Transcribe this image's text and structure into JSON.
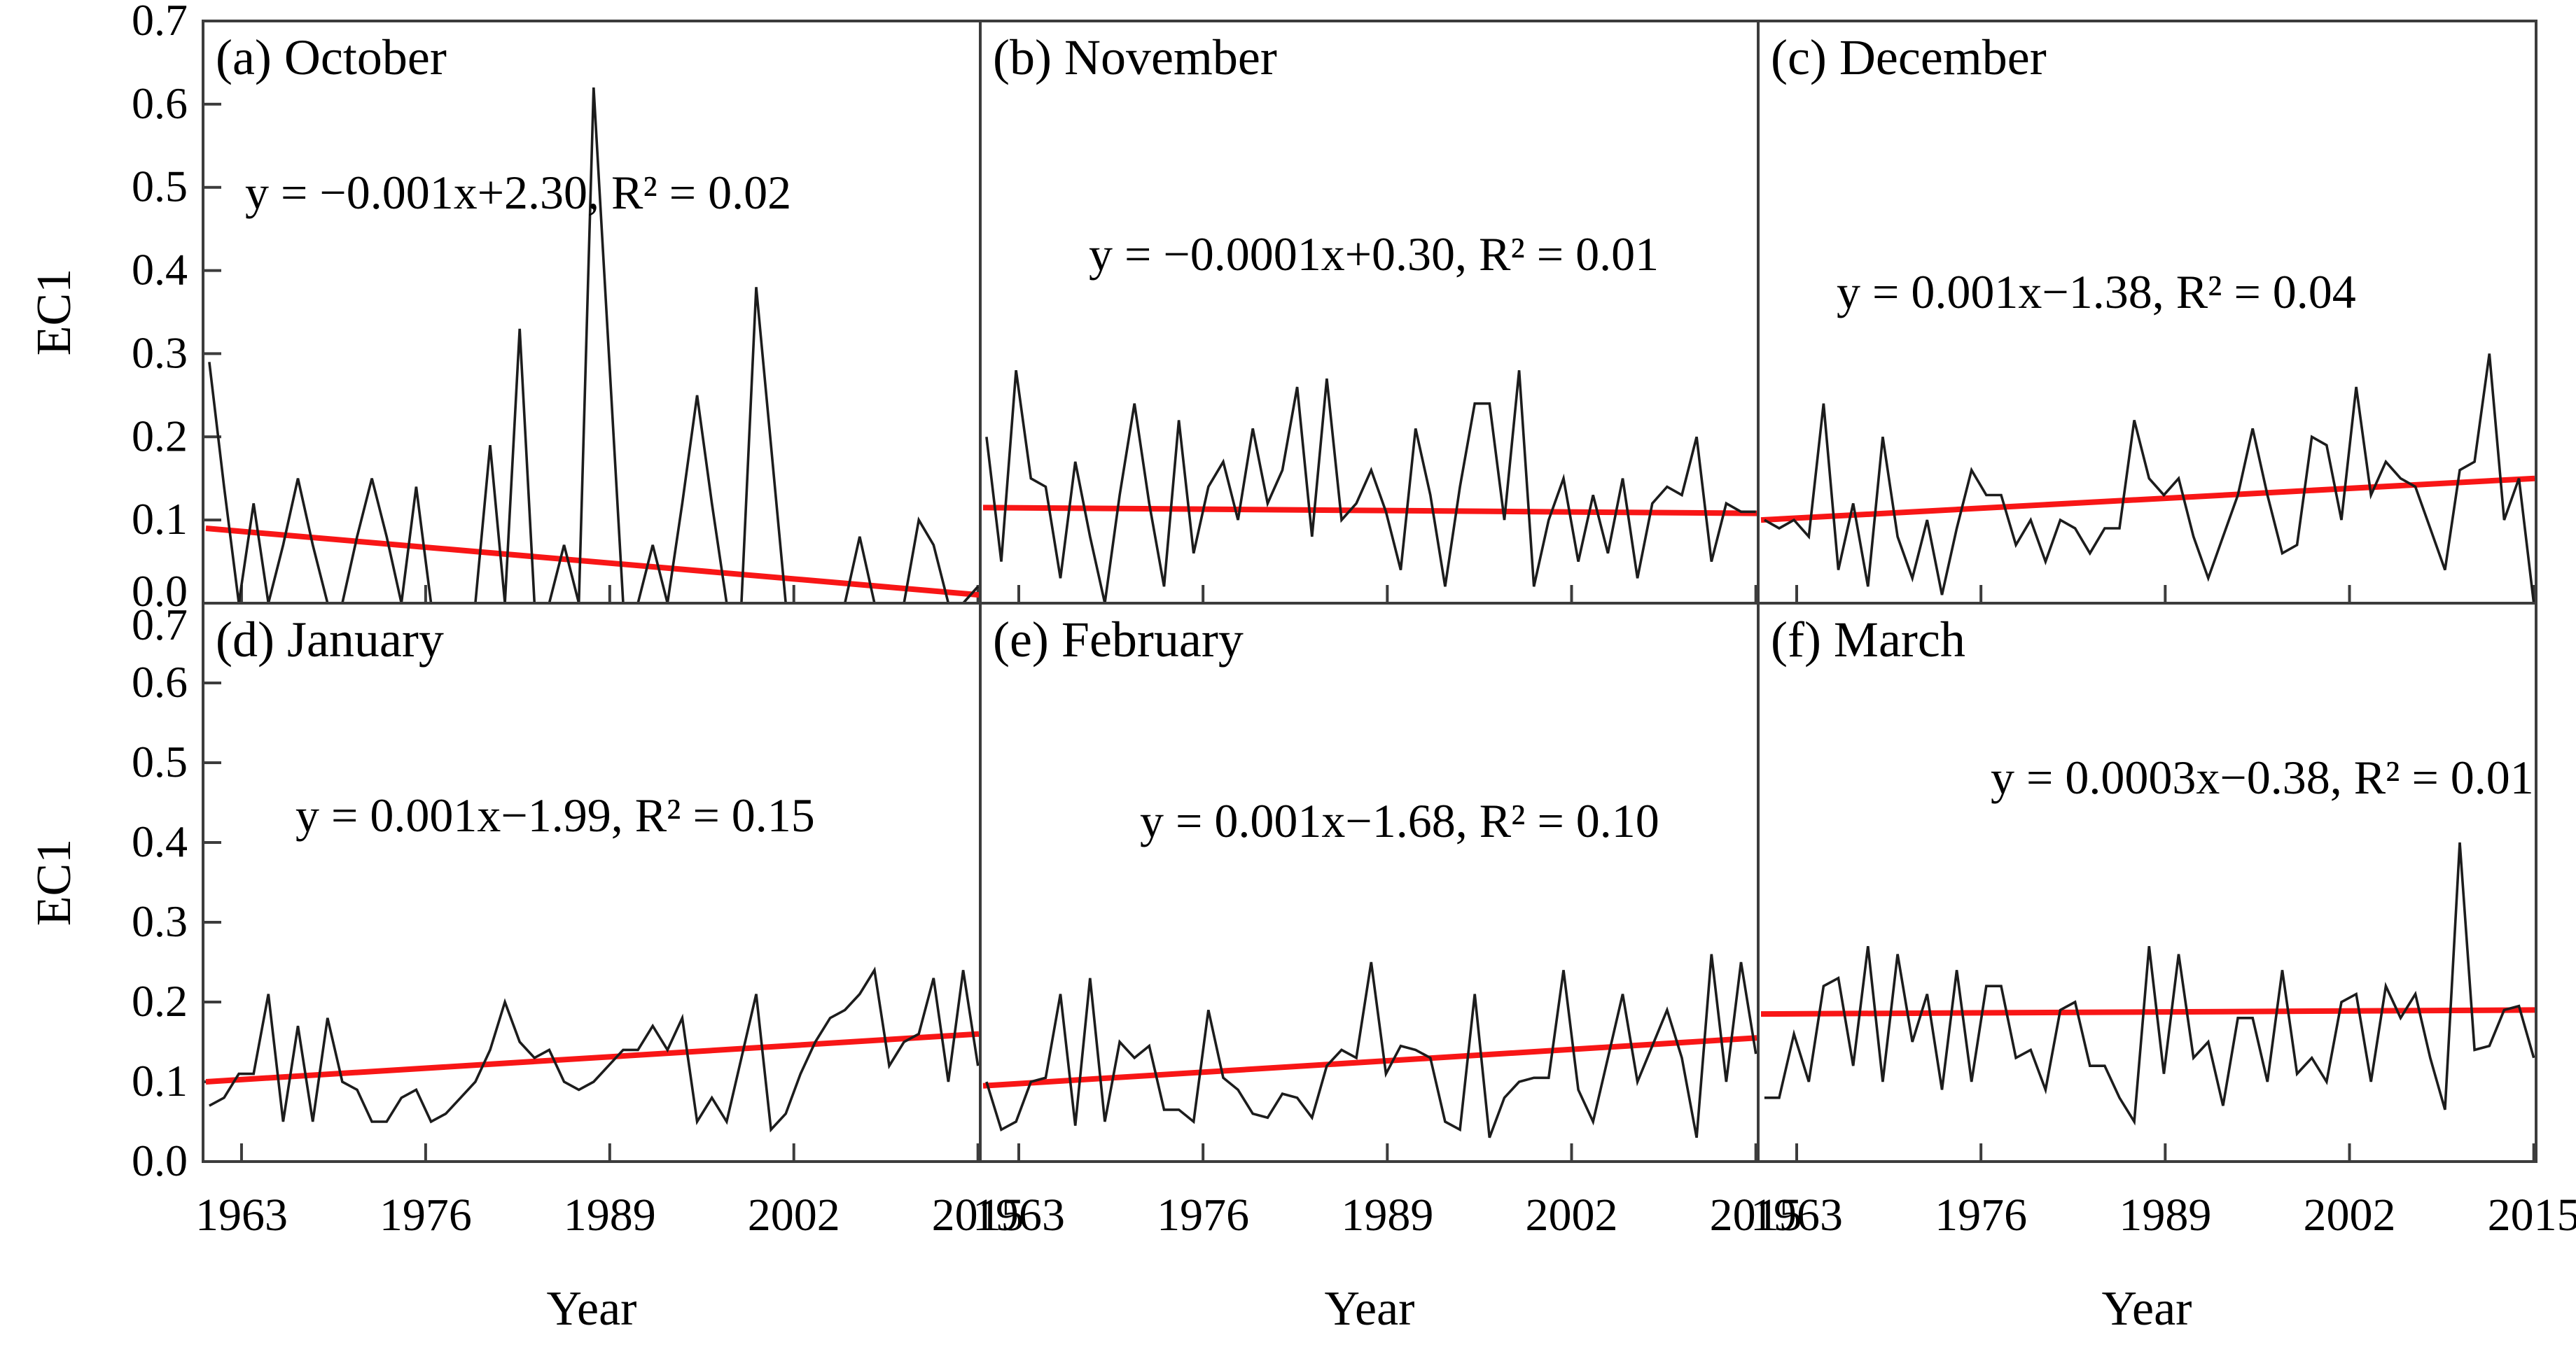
{
  "figure": {
    "ylabel": "EC1",
    "xlabel": "Year",
    "y_tick_labels": [
      "0.0",
      "0.1",
      "0.2",
      "0.3",
      "0.4",
      "0.5",
      "0.6",
      "0.7"
    ],
    "x_tick_labels": [
      "1963",
      "1976",
      "1989",
      "2002",
      "2015"
    ],
    "colors": {
      "series_line": "#1c1c1c",
      "trend_line": "#f81616",
      "equation_text": "#fa0a0a",
      "panel_border": "#3c3c3c",
      "tick_text": "#000000",
      "background": "#ffffff"
    }
  },
  "chart_data": {
    "type": "line",
    "title": "",
    "xlabel": "Year",
    "ylabel": "EC1",
    "ylim": [
      0.0,
      0.7
    ],
    "x_ticks": [
      1963,
      1976,
      1989,
      2002,
      2015
    ],
    "y_ticks": [
      0.0,
      0.1,
      0.2,
      0.3,
      0.4,
      0.5,
      0.6,
      0.7
    ],
    "grid": false,
    "legend": "none",
    "years": [
      1963,
      1964,
      1965,
      1966,
      1967,
      1968,
      1969,
      1970,
      1971,
      1972,
      1973,
      1974,
      1975,
      1976,
      1977,
      1978,
      1979,
      1980,
      1981,
      1982,
      1983,
      1984,
      1985,
      1986,
      1987,
      1988,
      1989,
      1990,
      1991,
      1992,
      1993,
      1994,
      1995,
      1996,
      1997,
      1998,
      1999,
      2000,
      2001,
      2002,
      2003,
      2004,
      2005,
      2006,
      2007,
      2008,
      2009,
      2010,
      2011,
      2012,
      2013,
      2014,
      2015
    ],
    "panels": [
      {
        "id": "a",
        "title": "(a) October",
        "equation": "y = −0.001x+2.30, R² = 0.02",
        "slope": -0.001,
        "intercept": 2.3,
        "r_squared": 0.02,
        "trend": [
          0.09,
          0.01
        ],
        "values": [
          0.29,
          0.14,
          0,
          0.12,
          0,
          0.07,
          0.15,
          0.07,
          0,
          0,
          0.08,
          0.15,
          0.08,
          0,
          0.14,
          0,
          0,
          0,
          0,
          0.19,
          0,
          0.33,
          0,
          0,
          0.07,
          0,
          0.62,
          0.31,
          0,
          0,
          0.07,
          0,
          0.12,
          0.25,
          0.12,
          0,
          0,
          0.38,
          0.19,
          0,
          0,
          0,
          0,
          0,
          0.08,
          0,
          0,
          0,
          0.1,
          0.07,
          0,
          0,
          0.02
        ]
      },
      {
        "id": "b",
        "title": "(b) November",
        "equation": "y = −0.0001x+0.30, R² = 0.01",
        "slope": -0.0001,
        "intercept": 0.3,
        "r_squared": 0.01,
        "trend": [
          0.115,
          0.108
        ],
        "values": [
          0.2,
          0.05,
          0.28,
          0.15,
          0.14,
          0.03,
          0.17,
          0.08,
          0.0,
          0.13,
          0.24,
          0.12,
          0.02,
          0.22,
          0.06,
          0.14,
          0.17,
          0.1,
          0.21,
          0.12,
          0.16,
          0.26,
          0.08,
          0.27,
          0.1,
          0.12,
          0.16,
          0.11,
          0.04,
          0.21,
          0.13,
          0.02,
          0.14,
          0.24,
          0.24,
          0.1,
          0.28,
          0.02,
          0.1,
          0.15,
          0.05,
          0.13,
          0.06,
          0.15,
          0.03,
          0.12,
          0.14,
          0.13,
          0.2,
          0.05,
          0.12,
          0.11,
          0.11
        ]
      },
      {
        "id": "c",
        "title": "(c) December",
        "equation": "y = 0.001x−1.38, R² = 0.04",
        "slope": 0.001,
        "intercept": -1.38,
        "r_squared": 0.04,
        "trend": [
          0.1,
          0.15
        ],
        "values": [
          0.1,
          0.09,
          0.1,
          0.08,
          0.24,
          0.04,
          0.12,
          0.02,
          0.2,
          0.08,
          0.03,
          0.1,
          0.01,
          0.09,
          0.16,
          0.13,
          0.13,
          0.07,
          0.1,
          0.05,
          0.1,
          0.09,
          0.06,
          0.09,
          0.09,
          0.22,
          0.15,
          0.13,
          0.15,
          0.08,
          0.03,
          0.08,
          0.13,
          0.21,
          0.13,
          0.06,
          0.07,
          0.2,
          0.19,
          0.1,
          0.26,
          0.13,
          0.17,
          0.15,
          0.14,
          0.09,
          0.04,
          0.16,
          0.17,
          0.3,
          0.1,
          0.15,
          0.0
        ]
      },
      {
        "id": "d",
        "title": "(d) January",
        "equation": "y = 0.001x−1.99, R² = 0.15",
        "slope": 0.001,
        "intercept": -1.99,
        "r_squared": 0.15,
        "trend": [
          0.1,
          0.16
        ],
        "values": [
          0.07,
          0.08,
          0.11,
          0.11,
          0.21,
          0.05,
          0.17,
          0.05,
          0.18,
          0.1,
          0.09,
          0.05,
          0.05,
          0.08,
          0.09,
          0.05,
          0.06,
          0.08,
          0.1,
          0.14,
          0.2,
          0.15,
          0.13,
          0.14,
          0.1,
          0.09,
          0.1,
          0.12,
          0.14,
          0.14,
          0.17,
          0.14,
          0.18,
          0.05,
          0.08,
          0.05,
          0.13,
          0.21,
          0.04,
          0.06,
          0.11,
          0.15,
          0.18,
          0.19,
          0.21,
          0.24,
          0.12,
          0.15,
          0.16,
          0.23,
          0.1,
          0.24,
          0.12
        ]
      },
      {
        "id": "e",
        "title": "(e) February",
        "equation": "y = 0.001x−1.68, R² = 0.10",
        "slope": 0.001,
        "intercept": -1.68,
        "r_squared": 0.1,
        "trend": [
          0.095,
          0.155
        ],
        "values": [
          0.1,
          0.04,
          0.05,
          0.1,
          0.105,
          0.21,
          0.045,
          0.23,
          0.05,
          0.15,
          0.13,
          0.145,
          0.065,
          0.065,
          0.05,
          0.19,
          0.105,
          0.09,
          0.06,
          0.055,
          0.085,
          0.08,
          0.055,
          0.12,
          0.14,
          0.13,
          0.25,
          0.11,
          0.145,
          0.14,
          0.13,
          0.05,
          0.04,
          0.21,
          0.03,
          0.08,
          0.1,
          0.105,
          0.105,
          0.24,
          0.09,
          0.05,
          0.13,
          0.21,
          0.1,
          0.145,
          0.19,
          0.13,
          0.03,
          0.26,
          0.1,
          0.25,
          0.135
        ]
      },
      {
        "id": "f",
        "title": "(f) March",
        "equation": "y = 0.0003x−0.38, R² = 0.01",
        "slope": 0.0003,
        "intercept": -0.38,
        "r_squared": 0.01,
        "trend": [
          0.185,
          0.19
        ],
        "values": [
          0.08,
          0.08,
          0.16,
          0.1,
          0.22,
          0.23,
          0.12,
          0.27,
          0.1,
          0.26,
          0.15,
          0.21,
          0.09,
          0.24,
          0.1,
          0.22,
          0.22,
          0.13,
          0.14,
          0.09,
          0.19,
          0.2,
          0.12,
          0.12,
          0.08,
          0.05,
          0.27,
          0.11,
          0.26,
          0.13,
          0.15,
          0.07,
          0.18,
          0.18,
          0.1,
          0.24,
          0.11,
          0.13,
          0.1,
          0.2,
          0.21,
          0.1,
          0.22,
          0.18,
          0.21,
          0.13,
          0.065,
          0.4,
          0.14,
          0.145,
          0.19,
          0.195,
          0.13
        ]
      }
    ]
  }
}
